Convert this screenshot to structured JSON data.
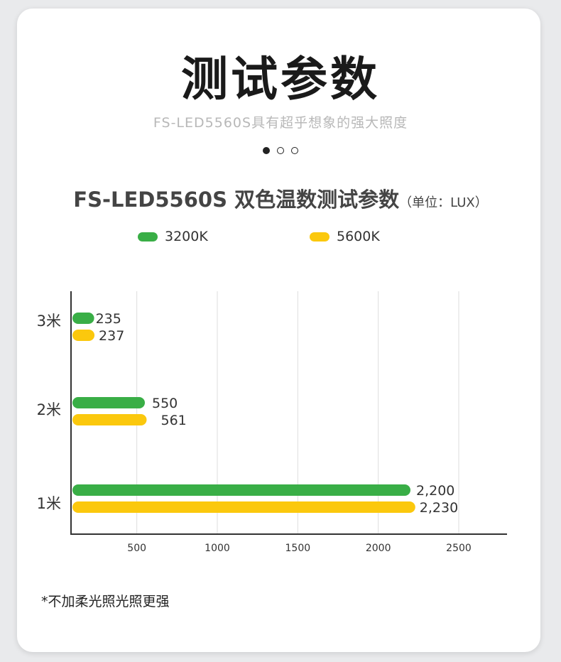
{
  "header": {
    "title": "测试参数",
    "subtitle": "FS-LED5560S具有超乎想象的强大照度"
  },
  "pagination": {
    "count": 3,
    "active": 0
  },
  "colors": {
    "series_3200": "#39ae46",
    "series_5600": "#fbc80d",
    "axis": "#333333",
    "grid": "#dddddd"
  },
  "chart_data": {
    "type": "bar",
    "orientation": "horizontal",
    "title": "FS-LED5560S 双色温数测试参数",
    "unit_label": "（单位：LUX）",
    "categories": [
      "3米",
      "2米",
      "1米"
    ],
    "series": [
      {
        "name": "3200K",
        "values": [
          235,
          550,
          2200
        ],
        "labels": [
          "235",
          "550",
          "2,200"
        ]
      },
      {
        "name": "5600K",
        "values": [
          237,
          561,
          2230
        ],
        "labels": [
          "237",
          "561",
          "2,230"
        ]
      }
    ],
    "xticks": [
      500,
      1000,
      1500,
      2000,
      2500
    ],
    "xtick_labels": [
      "500",
      "1000",
      "1500",
      "2000",
      "2500"
    ],
    "xlim": [
      100,
      2800
    ],
    "grid": true,
    "legend_position": "top"
  },
  "footnote": "*不加柔光照光照更强"
}
